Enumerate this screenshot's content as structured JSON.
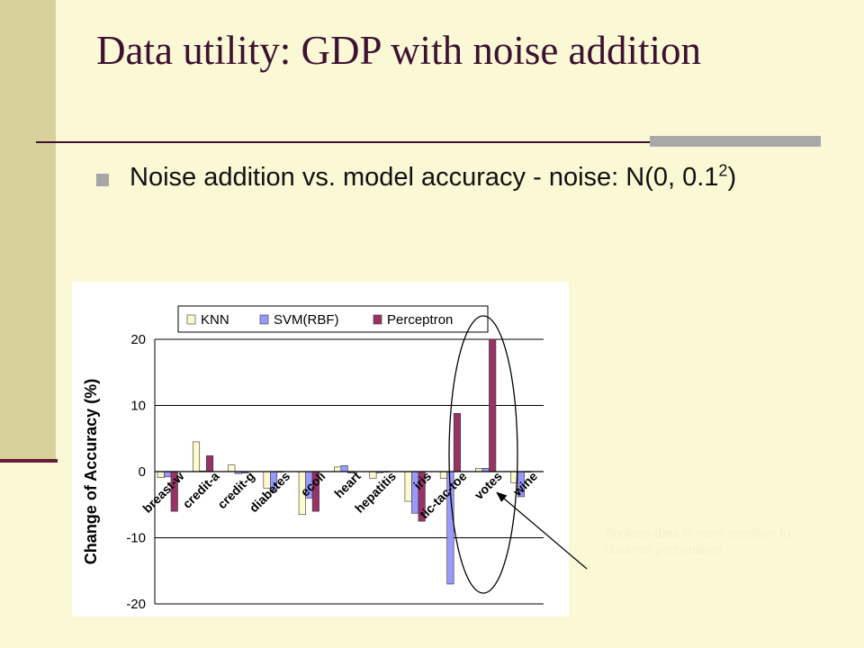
{
  "slide": {
    "title": "Data utility: GDP with noise addition",
    "bullet": {
      "text": "Noise addition vs. model accuracy - noise: N(0, 0.1",
      "superscript": "2",
      "suffix": ")"
    },
    "annotation": "Boolean data is more sensitive to distance perturbation"
  },
  "colors": {
    "background": "#fbf8d6",
    "sidebar": "#d6d29a",
    "title": "#3d1230",
    "knn": "#fdfacc",
    "svm": "#9999ff",
    "perceptron": "#993366"
  },
  "chart_data": {
    "type": "bar",
    "ylabel": "Change of Accuracy (%)",
    "ylim": [
      -20,
      20
    ],
    "yticks": [
      "-20",
      "-10",
      "0",
      "10",
      "20"
    ],
    "grid": true,
    "legend_position": "top",
    "categories": [
      "breast-w",
      "credit-a",
      "credit-g",
      "diabetes",
      "ecoli",
      "heart",
      "hepatitis",
      "iris",
      "tic-tac-toe",
      "votes",
      "wine"
    ],
    "series": [
      {
        "name": "KNN",
        "color": "#fdfacc",
        "values": [
          -0.9,
          4.5,
          1.0,
          -2.5,
          -6.5,
          0.7,
          -1.0,
          -4.5,
          -1.0,
          0.5,
          -1.7
        ]
      },
      {
        "name": "SVM(RBF)",
        "color": "#9999ff",
        "values": [
          -0.8,
          0.1,
          -0.3,
          -3.0,
          -4.0,
          0.9,
          -0.2,
          -6.3,
          -17.0,
          0.5,
          -3.8
        ]
      },
      {
        "name": "Perceptron",
        "color": "#993366",
        "values": [
          -6.0,
          2.4,
          -0.2,
          0.0,
          -6.0,
          -0.2,
          0.0,
          -7.5,
          8.8,
          20.0,
          0.0
        ]
      }
    ]
  }
}
